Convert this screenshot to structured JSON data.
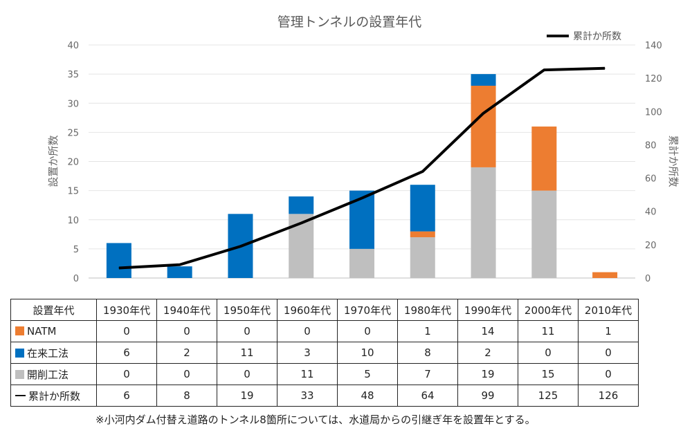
{
  "chart_data": {
    "type": "bar",
    "stacked": true,
    "title": "管理トンネルの設置年代",
    "ylabel": "設置か所数",
    "y2label": "累計か所数",
    "ylim": [
      0,
      40
    ],
    "y2lim": [
      0,
      140
    ],
    "yticks": [
      0,
      5,
      10,
      15,
      20,
      25,
      30,
      35,
      40
    ],
    "y2ticks": [
      0,
      20,
      40,
      60,
      80,
      100,
      120,
      140
    ],
    "grid": true,
    "legend_position": "top-right",
    "categories": [
      "1930年代",
      "1940年代",
      "1950年代",
      "1960年代",
      "1970年代",
      "1980年代",
      "1990年代",
      "2000年代",
      "2010年代"
    ],
    "series": [
      {
        "name": "開削工法",
        "type": "bar",
        "axis": "left",
        "color": "#bfbfbf",
        "values": [
          0,
          0,
          0,
          11,
          5,
          7,
          19,
          15,
          0
        ]
      },
      {
        "name": "NATM",
        "type": "bar",
        "axis": "left",
        "color": "#ed7d31",
        "values": [
          0,
          0,
          0,
          0,
          0,
          1,
          14,
          11,
          1
        ]
      },
      {
        "name": "在来工法",
        "type": "bar",
        "axis": "left",
        "color": "#0070c0",
        "values": [
          6,
          2,
          11,
          3,
          10,
          8,
          2,
          0,
          0
        ]
      },
      {
        "name": "累計か所数",
        "type": "line",
        "axis": "right",
        "color": "#000000",
        "values": [
          6,
          8,
          19,
          33,
          48,
          64,
          99,
          125,
          126
        ]
      }
    ]
  },
  "table": {
    "header_label": "設置年代",
    "rows": [
      {
        "label": "NATM",
        "marker": "square",
        "color": "#ed7d31",
        "values": [
          "0",
          "0",
          "0",
          "0",
          "0",
          "1",
          "14",
          "11",
          "1"
        ]
      },
      {
        "label": "在来工法",
        "marker": "square",
        "color": "#0070c0",
        "values": [
          "6",
          "2",
          "11",
          "3",
          "10",
          "8",
          "2",
          "0",
          "0"
        ]
      },
      {
        "label": "開削工法",
        "marker": "square",
        "color": "#bfbfbf",
        "values": [
          "0",
          "0",
          "0",
          "11",
          "5",
          "7",
          "19",
          "15",
          "0"
        ]
      },
      {
        "label": "累計か所数",
        "marker": "line",
        "color": "#000000",
        "values": [
          "6",
          "8",
          "19",
          "33",
          "48",
          "64",
          "99",
          "125",
          "126"
        ]
      }
    ]
  },
  "footnote": "※小河内ダム付替え道路のトンネル8箇所については、水道局からの引継ぎ年を設置年とする。"
}
